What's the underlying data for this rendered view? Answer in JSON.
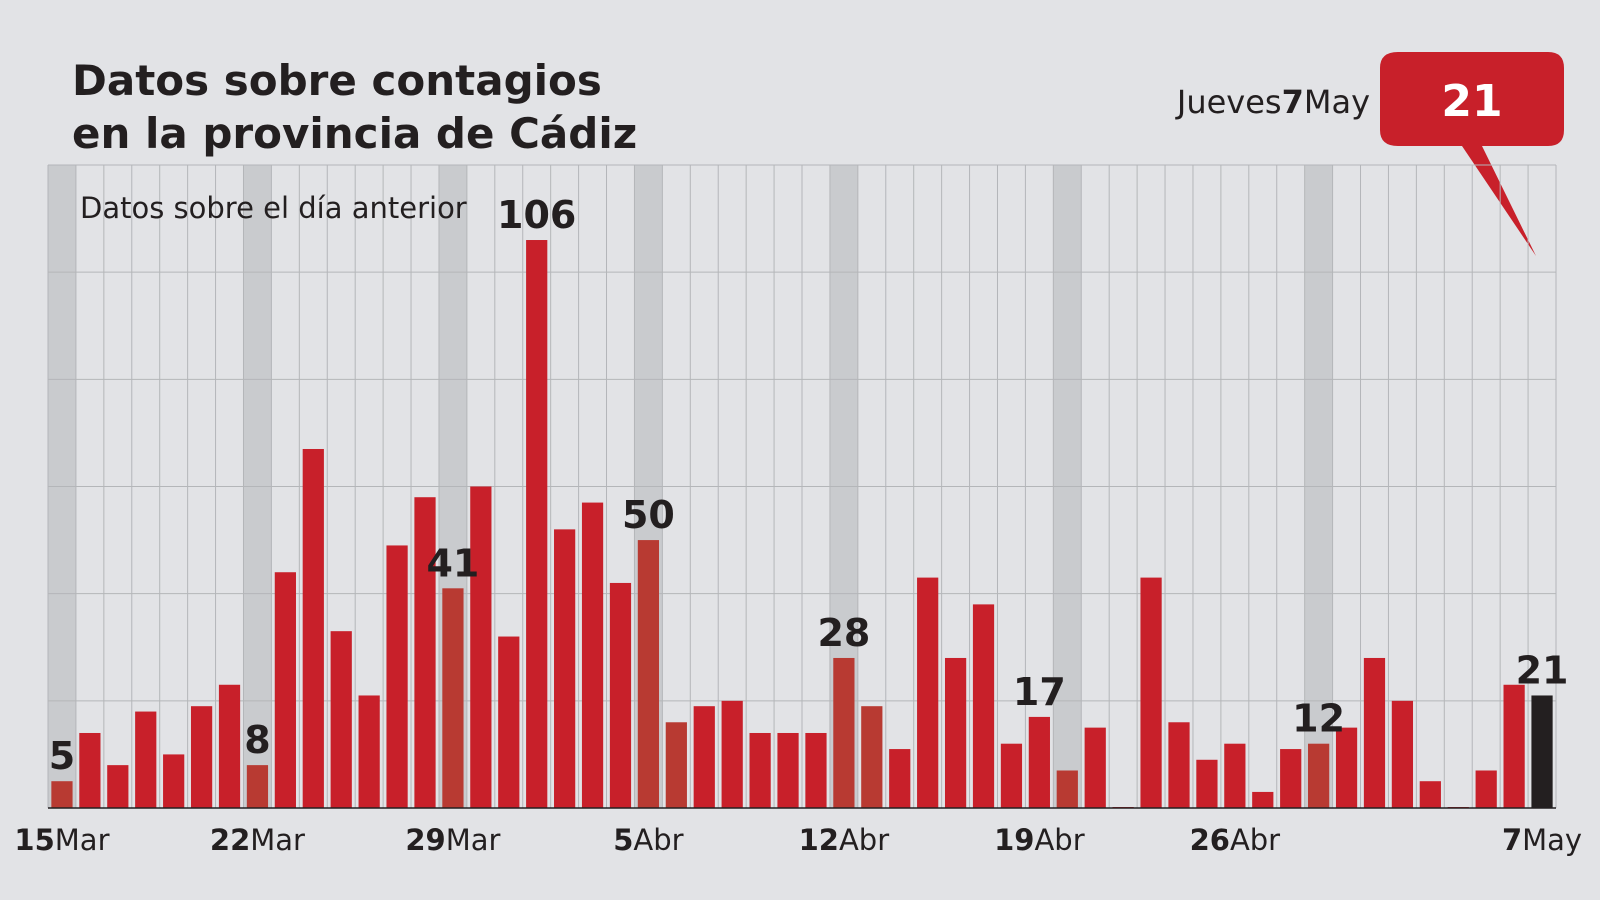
{
  "chart_data": {
    "type": "bar",
    "title": [
      "Datos sobre contagios",
      "en la provincia de Cádiz"
    ],
    "subtitle": "Datos sobre el día anterior",
    "callout": {
      "weekday": "Jueves",
      "day": "7",
      "month": "May",
      "value": 21
    },
    "categories": [
      "15Mar",
      null,
      null,
      null,
      null,
      null,
      null,
      "22Mar",
      null,
      null,
      null,
      null,
      null,
      null,
      "29Mar",
      null,
      null,
      null,
      null,
      null,
      null,
      "5Abr",
      null,
      null,
      null,
      null,
      null,
      null,
      "12Abr",
      null,
      null,
      null,
      null,
      null,
      null,
      "19Abr",
      null,
      null,
      null,
      null,
      null,
      null,
      "26Abr",
      null,
      null,
      null,
      null,
      null,
      null,
      null,
      null,
      null,
      null,
      "7May"
    ],
    "values": [
      5,
      14,
      8,
      18,
      10,
      19,
      23,
      8,
      44,
      67,
      33,
      21,
      49,
      58,
      41,
      60,
      32,
      106,
      52,
      57,
      42,
      50,
      16,
      19,
      20,
      14,
      14,
      14,
      28,
      19,
      11,
      43,
      28,
      38,
      12,
      17,
      7,
      15,
      0,
      43,
      16,
      9,
      12,
      3,
      11,
      12,
      15,
      28,
      20,
      5,
      0,
      7,
      23,
      21
    ],
    "color": "#c8202a",
    "highlight_color": "#b83a32",
    "last_color": "#231f20",
    "highlight_indices": [
      0,
      7,
      14,
      21,
      22,
      28,
      29,
      36,
      45
    ],
    "labeled_indices": [
      0,
      7,
      14,
      17,
      21,
      28,
      35,
      45,
      53
    ],
    "shaded_indices": [
      0,
      7,
      14,
      21,
      28,
      36,
      45
    ],
    "ylim": [
      0,
      120
    ],
    "yticks": [
      0,
      20,
      40,
      60,
      80,
      100,
      120
    ],
    "grid": true
  }
}
